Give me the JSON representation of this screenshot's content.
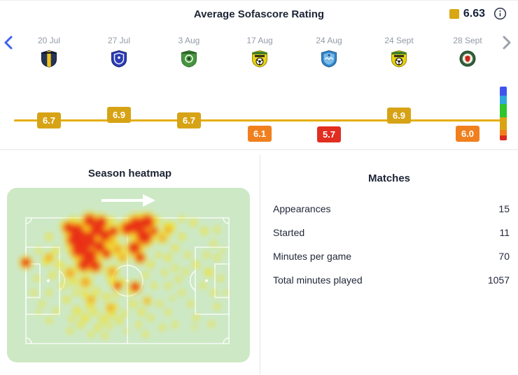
{
  "header": {
    "title": "Average Sofascore Rating",
    "average_rating": "6.63"
  },
  "timeline": {
    "items": [
      {
        "date": "20 Jul",
        "rating": "6.7",
        "tone": "gold",
        "team": "navy-yellow-shield"
      },
      {
        "date": "27 Jul",
        "rating": "6.9",
        "tone": "gold",
        "team": "blue-shield"
      },
      {
        "date": "3 Aug",
        "rating": "6.7",
        "tone": "gold",
        "team": "green-shield"
      },
      {
        "date": "17 Aug",
        "rating": "6.1",
        "tone": "orange",
        "team": "yellow-green-shield"
      },
      {
        "date": "24 Aug",
        "rating": "5.7",
        "tone": "red",
        "team": "light-blue-shield"
      },
      {
        "date": "24 Sept",
        "rating": "6.9",
        "tone": "gold",
        "team": "yellow-green-shield"
      },
      {
        "date": "28 Sept",
        "rating": "6.0",
        "tone": "orange",
        "team": "dark-green-circle"
      }
    ]
  },
  "colors": {
    "gold": "#d7a316",
    "orange": "#f0801e",
    "red": "#e02e20",
    "line": "#e5ae0d",
    "scale": [
      "#4153ee",
      "#2fa7dc",
      "#2ec42e",
      "#d8a414",
      "#f0801e",
      "#da2a1e"
    ],
    "pitch_bg": "#cde8c5"
  },
  "chart_data": {
    "type": "line",
    "title": "Average Sofascore Rating",
    "x": [
      "20 Jul",
      "27 Jul",
      "3 Aug",
      "17 Aug",
      "24 Aug",
      "24 Sept",
      "28 Sept"
    ],
    "values": [
      6.7,
      6.9,
      6.7,
      6.1,
      5.7,
      6.9,
      6.0
    ],
    "average": 6.63,
    "legend_position": "top-right",
    "grid": false
  },
  "heatmap": {
    "title": "Season heatmap",
    "points": {
      "red": [
        [
          100,
          62,
          10
        ],
        [
          115,
          75,
          12
        ],
        [
          128,
          60,
          9
        ],
        [
          104,
          88,
          11
        ],
        [
          118,
          98,
          10
        ],
        [
          132,
          84,
          8
        ],
        [
          96,
          74,
          9
        ],
        [
          140,
          68,
          8
        ],
        [
          110,
          110,
          8
        ],
        [
          126,
          112,
          7
        ],
        [
          142,
          94,
          6
        ],
        [
          88,
          57,
          7
        ],
        [
          134,
          50,
          8
        ],
        [
          118,
          47,
          8
        ],
        [
          152,
          62,
          6
        ],
        [
          185,
          54,
          11
        ],
        [
          196,
          70,
          10
        ],
        [
          182,
          86,
          8
        ],
        [
          200,
          49,
          9
        ],
        [
          172,
          58,
          8
        ],
        [
          190,
          100,
          6
        ],
        [
          210,
          62,
          5
        ],
        [
          158,
          140,
          5
        ],
        [
          183,
          142,
          6
        ],
        [
          27,
          107,
          6
        ]
      ],
      "orange": [
        [
          150,
          120,
          6
        ],
        [
          165,
          100,
          5
        ],
        [
          90,
          122,
          6
        ],
        [
          148,
          76,
          6
        ],
        [
          222,
          72,
          5
        ],
        [
          120,
          160,
          5
        ],
        [
          148,
          172,
          5
        ],
        [
          200,
          162,
          4
        ],
        [
          60,
          100,
          5
        ],
        [
          230,
          60,
          5
        ],
        [
          112,
          135,
          6
        ],
        [
          158,
          88,
          6
        ]
      ],
      "yellow": [
        [
          235,
          55,
          6
        ],
        [
          250,
          70,
          5
        ],
        [
          266,
          50,
          5
        ],
        [
          282,
          62,
          5
        ],
        [
          240,
          86,
          5
        ],
        [
          258,
          96,
          4
        ],
        [
          295,
          80,
          4
        ],
        [
          270,
          110,
          5
        ],
        [
          288,
          121,
          6
        ],
        [
          300,
          100,
          4
        ],
        [
          230,
          100,
          5
        ],
        [
          225,
          121,
          4
        ],
        [
          245,
          131,
          4
        ],
        [
          60,
          70,
          5
        ],
        [
          70,
          90,
          5
        ],
        [
          55,
          106,
          5
        ],
        [
          65,
          125,
          5
        ],
        [
          80,
          140,
          5
        ],
        [
          60,
          150,
          4
        ],
        [
          95,
          136,
          5
        ],
        [
          75,
          110,
          6
        ],
        [
          45,
          90,
          4
        ],
        [
          42,
          130,
          4
        ],
        [
          50,
          166,
          4
        ],
        [
          85,
          160,
          5
        ],
        [
          70,
          176,
          4
        ],
        [
          38,
          150,
          4
        ],
        [
          100,
          176,
          6
        ],
        [
          112,
          186,
          6
        ],
        [
          125,
          178,
          5
        ],
        [
          138,
          188,
          6
        ],
        [
          150,
          182,
          5
        ],
        [
          118,
          170,
          5
        ],
        [
          105,
          196,
          5
        ],
        [
          130,
          200,
          5
        ],
        [
          146,
          198,
          4
        ],
        [
          92,
          188,
          4
        ],
        [
          160,
          190,
          5
        ],
        [
          155,
          170,
          4
        ],
        [
          168,
          180,
          4
        ],
        [
          110,
          152,
          5
        ],
        [
          128,
          148,
          5
        ],
        [
          142,
          156,
          5
        ],
        [
          156,
          154,
          4
        ],
        [
          98,
          150,
          4
        ],
        [
          180,
          166,
          5
        ],
        [
          192,
          178,
          5
        ],
        [
          205,
          186,
          4
        ],
        [
          188,
          196,
          4
        ],
        [
          175,
          150,
          4
        ],
        [
          198,
          125,
          4
        ],
        [
          210,
          140,
          4
        ],
        [
          218,
          166,
          4
        ],
        [
          230,
          178,
          4
        ],
        [
          205,
          110,
          5
        ],
        [
          216,
          96,
          4
        ],
        [
          250,
          150,
          4
        ],
        [
          262,
          166,
          4
        ],
        [
          280,
          140,
          4
        ],
        [
          295,
          150,
          4
        ],
        [
          270,
          186,
          4
        ],
        [
          300,
          170,
          4
        ],
        [
          285,
          96,
          4
        ],
        [
          305,
          130,
          4
        ],
        [
          240,
          115,
          4
        ],
        [
          255,
          120,
          4
        ],
        [
          150,
          47,
          5
        ],
        [
          162,
          52,
          4
        ],
        [
          215,
          47,
          5
        ],
        [
          228,
          52,
          4
        ],
        [
          95,
          46,
          5
        ],
        [
          80,
          52,
          4
        ],
        [
          250,
          44,
          4
        ],
        [
          300,
          60,
          4
        ],
        [
          308,
          90,
          3
        ],
        [
          312,
          150,
          3
        ],
        [
          292,
          195,
          4
        ],
        [
          268,
          200,
          3
        ],
        [
          240,
          196,
          4
        ],
        [
          222,
          200,
          4
        ],
        [
          60,
          190,
          4
        ],
        [
          45,
          178,
          3
        ],
        [
          198,
          210,
          4
        ],
        [
          120,
          210,
          4
        ],
        [
          140,
          212,
          4
        ],
        [
          170,
          205,
          3
        ],
        [
          90,
          205,
          4
        ],
        [
          230,
          140,
          4
        ],
        [
          236,
          158,
          3
        ],
        [
          165,
          135,
          5
        ],
        [
          150,
          134,
          6
        ]
      ]
    }
  },
  "matches": {
    "title": "Matches",
    "rows": [
      {
        "label": "Appearances",
        "value": "15"
      },
      {
        "label": "Started",
        "value": "11"
      },
      {
        "label": "Minutes per game",
        "value": "70"
      },
      {
        "label": "Total minutes played",
        "value": "1057"
      }
    ]
  }
}
